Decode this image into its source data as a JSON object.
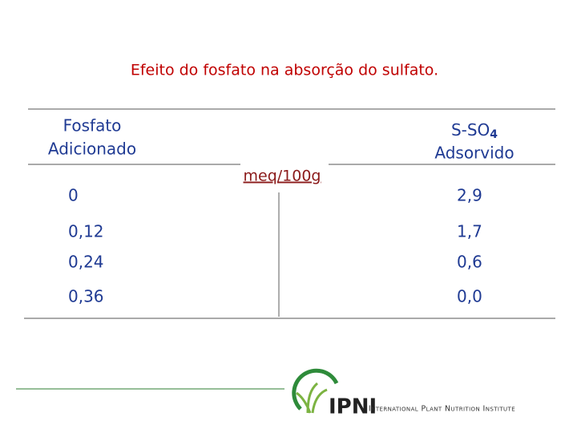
{
  "title": "Efeito do fosfato na absorção do sulfato.",
  "table": {
    "header_left": [
      "Fosfato",
      "Adicionado"
    ],
    "unit": "meq/100g",
    "header_right": {
      "main": "S-SO",
      "sub": "4",
      "line2": "Adsorvido"
    },
    "rows": [
      [
        "0",
        "2,9"
      ],
      [
        "0,12",
        "1,7"
      ],
      [
        "0,24",
        "0,6"
      ],
      [
        "0,36",
        "0,0"
      ]
    ]
  },
  "logo": {
    "acronym": "IPNI",
    "name": "International Plant Nutrition Institute"
  }
}
